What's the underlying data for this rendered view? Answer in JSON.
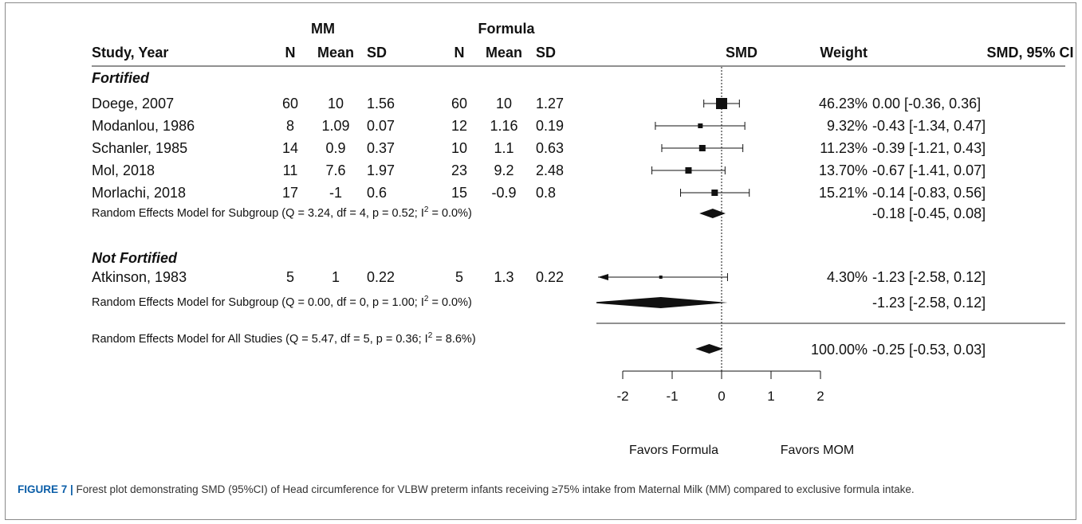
{
  "headers": {
    "group_mm": "MM",
    "group_formula": "Formula",
    "study": "Study, Year",
    "n": "N",
    "mean": "Mean",
    "sd": "SD",
    "smd": "SMD",
    "weight": "Weight",
    "ci": "SMD, 95% CI"
  },
  "chart_data": {
    "type": "forest",
    "x_ticks": [
      "-2",
      "-1",
      "0",
      "1",
      "2"
    ],
    "xlim": [
      -2,
      2
    ],
    "favor_left": "Favors Formula",
    "favor_right": "Favors MOM",
    "subgroups": [
      {
        "name": "Fortified",
        "studies": [
          {
            "label": "Doege, 2007",
            "mm_n": "60",
            "mm_mean": "10",
            "mm_sd": "1.56",
            "f_n": "60",
            "f_mean": "10",
            "f_sd": "1.27",
            "smd": 0.0,
            "lo": -0.36,
            "hi": 0.36,
            "weight": "46.23%",
            "ci": "0.00 [-0.36, 0.36]"
          },
          {
            "label": "Modanlou, 1986",
            "mm_n": "8",
            "mm_mean": "1.09",
            "mm_sd": "0.07",
            "f_n": "12",
            "f_mean": "1.16",
            "f_sd": "0.19",
            "smd": -0.43,
            "lo": -1.34,
            "hi": 0.47,
            "weight": "9.32%",
            "ci": "-0.43 [-1.34, 0.47]"
          },
          {
            "label": "Schanler, 1985",
            "mm_n": "14",
            "mm_mean": "0.9",
            "mm_sd": "0.37",
            "f_n": "10",
            "f_mean": "1.1",
            "f_sd": "0.63",
            "smd": -0.39,
            "lo": -1.21,
            "hi": 0.43,
            "weight": "11.23%",
            "ci": "-0.39 [-1.21, 0.43]"
          },
          {
            "label": "Mol, 2018",
            "mm_n": "11",
            "mm_mean": "7.6",
            "mm_sd": "1.97",
            "f_n": "23",
            "f_mean": "9.2",
            "f_sd": "2.48",
            "smd": -0.67,
            "lo": -1.41,
            "hi": 0.07,
            "weight": "13.70%",
            "ci": "-0.67 [-1.41, 0.07]"
          },
          {
            "label": "Morlachi, 2018",
            "mm_n": "17",
            "mm_mean": "-1",
            "mm_sd": "0.6",
            "f_n": "15",
            "f_mean": "-0.9",
            "f_sd": "0.8",
            "smd": -0.14,
            "lo": -0.83,
            "hi": 0.56,
            "weight": "15.21%",
            "ci": "-0.14 [-0.83, 0.56]"
          }
        ],
        "model": {
          "pre": "Random Effects Model for Subgroup (Q = 3.24, df = 4, p = 0.52; I",
          "sup": "2",
          "post": " = 0.0%)",
          "smd": -0.18,
          "lo": -0.45,
          "hi": 0.08,
          "ci": "-0.18 [-0.45, 0.08]"
        }
      },
      {
        "name": "Not Fortified",
        "studies": [
          {
            "label": "Atkinson, 1983",
            "mm_n": "5",
            "mm_mean": "1",
            "mm_sd": "0.22",
            "f_n": "5",
            "f_mean": "1.3",
            "f_sd": "0.22",
            "smd": -1.23,
            "lo": -2.58,
            "hi": 0.12,
            "weight": "4.30%",
            "ci": "-1.23 [-2.58, 0.12]"
          }
        ],
        "model": {
          "pre": "Random Effects Model for Subgroup (Q = 0.00, df = 0, p = 1.00; I",
          "sup": "2",
          "post": " = 0.0%)",
          "smd": -1.23,
          "lo": -2.58,
          "hi": 0.12,
          "ci": "-1.23 [-2.58, 0.12]"
        }
      }
    ],
    "overall": {
      "pre": "Random Effects Model for All Studies (Q = 5.47, df = 5, p = 0.36; I",
      "sup": "2",
      "post": " = 8.6%)",
      "smd": -0.25,
      "lo": -0.53,
      "hi": 0.03,
      "weight": "100.00%",
      "ci": "-0.25 [-0.53, 0.03]"
    }
  },
  "caption": {
    "label": "FIGURE 7 |",
    "text": " Forest plot demonstrating SMD (95%CI) of Head circumference for VLBW preterm infants receiving ≥75% intake from Maternal Milk (MM) compared to exclusive formula intake."
  }
}
